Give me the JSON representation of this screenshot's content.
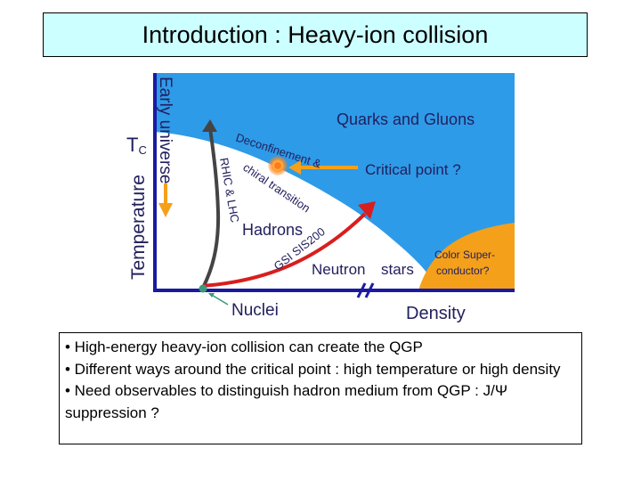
{
  "slide": {
    "title": "Introduction : Heavy-ion collision"
  },
  "diagram": {
    "labels": {
      "temperature": "Temperature",
      "tc": "T",
      "tc_sub": "C",
      "early_universe": "Early universe",
      "rhic_lhc": "RHIC & LHC",
      "deconfinement_1": "Deconfinement &",
      "deconfinement_2": "chiral transition",
      "quarks_gluons": "Quarks and Gluons",
      "critical_point": "Critical point ?",
      "hadrons": "Hadrons",
      "gsi": "GSI SIS200",
      "neutron": "Neutron",
      "stars": "stars",
      "color_super_1": "Color Super-",
      "color_super_2": "conductor?",
      "nuclei": "Nuclei",
      "density": "Density"
    },
    "colors": {
      "qgp_blue": "#2e9be8",
      "hadron_white": "#ffffff",
      "color_super": "#f5a01a",
      "axis": "#1a1aa0",
      "text_navy": "#22205e",
      "arrow_red": "#d81e1e",
      "arrow_gray": "#444444",
      "arrow_orange": "#f5a01a",
      "nuclei_green": "#3a9a7a"
    }
  },
  "bullets": [
    "• High-energy heavy-ion collision can create the QGP",
    "• Different ways around the critical point : high temperature or high density",
    "• Need observables to distinguish hadron medium from QGP : J/Ψ suppression ?"
  ]
}
